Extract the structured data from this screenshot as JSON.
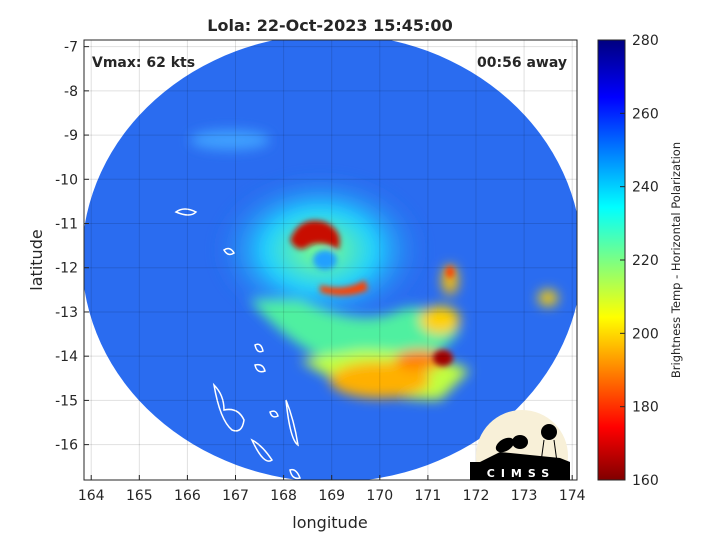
{
  "title": "Lola: 22-Oct-2023 15:45:00",
  "vmax_label": "Vmax: 62 kts",
  "time_label": "00:56 away",
  "xlabel": "longitude",
  "ylabel": "latitude",
  "x_ticks": [
    "164",
    "165",
    "166",
    "167",
    "168",
    "169",
    "170",
    "171",
    "172",
    "173",
    "174"
  ],
  "y_ticks": [
    "-7",
    "-8",
    "-9",
    "-10",
    "-11",
    "-12",
    "-13",
    "-14",
    "-15",
    "-16"
  ],
  "colorbar": {
    "label": "Brightness Temp - Horizontal Polarization",
    "ticks": [
      "160",
      "180",
      "200",
      "220",
      "240",
      "260",
      "280"
    ],
    "range": [
      160,
      280
    ],
    "colormap": "jet"
  },
  "logo_text": "CIMSS",
  "chart_data": {
    "type": "heatmap",
    "title": "Lola: 22-Oct-2023 15:45:00",
    "xlabel": "longitude",
    "ylabel": "latitude",
    "xlim": [
      163.85,
      174.1
    ],
    "ylim": [
      -16.8,
      -6.85
    ],
    "grid": true,
    "storm_center": {
      "lon": 168.9,
      "lat": -11.6
    },
    "colors": {
      "background_field": "#2a6cf0",
      "eyewall": "#c81000",
      "coast": "#ffffff"
    }
  }
}
